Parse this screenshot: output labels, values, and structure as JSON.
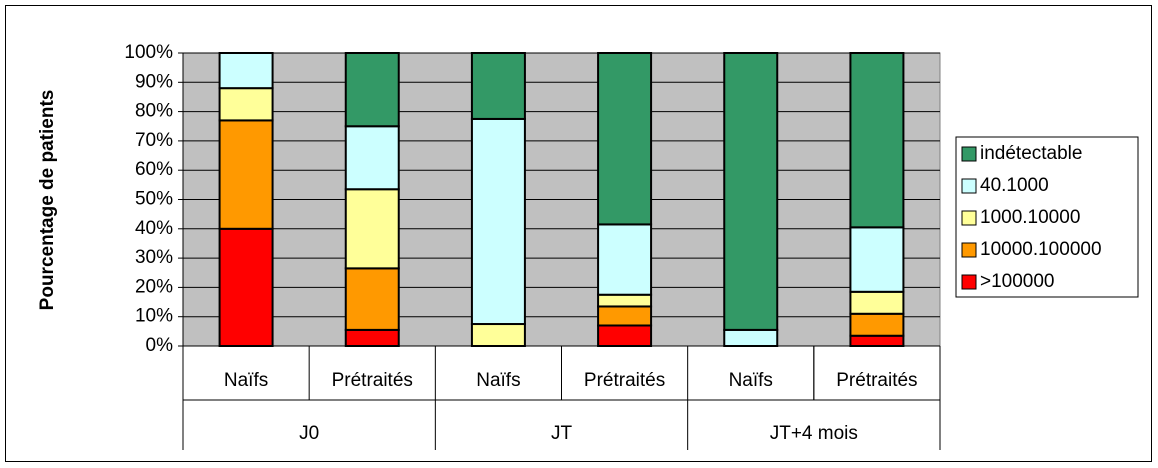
{
  "chart_data": {
    "type": "stacked_bar",
    "y_label": "Pourcentage de patients",
    "categories": [
      "Naïfs",
      "Prétraités",
      "Naïfs",
      "Prétraités",
      "Naïfs",
      "Prétraités"
    ],
    "groups": [
      "J0",
      "JT",
      "JT+4 mois"
    ],
    "series": [
      {
        "name": ">100000",
        "color": "#ff0000",
        "values": [
          40,
          5.5,
          0,
          7,
          0,
          3.5
        ]
      },
      {
        "name": "10000.100000",
        "color": "#ff9900",
        "values": [
          37,
          21,
          0,
          6.5,
          0,
          7.5
        ]
      },
      {
        "name": "1000.10000",
        "color": "#ffff99",
        "values": [
          11,
          27,
          7.5,
          4,
          0,
          7.5
        ]
      },
      {
        "name": "40.1000",
        "color": "#ccffff",
        "values": [
          12,
          21.5,
          70,
          24,
          5.5,
          22
        ]
      },
      {
        "name": "indétectable",
        "color": "#339966",
        "values": [
          0,
          25,
          22.5,
          58.5,
          94.5,
          59.5
        ]
      }
    ],
    "ylim": [
      0,
      100
    ],
    "yticks": [
      {
        "value": 0,
        "label": "0%"
      },
      {
        "value": 10,
        "label": "10%"
      },
      {
        "value": 20,
        "label": "20%"
      },
      {
        "value": 30,
        "label": "30%"
      },
      {
        "value": 40,
        "label": "40%"
      },
      {
        "value": 50,
        "label": "50%"
      },
      {
        "value": 60,
        "label": "60%"
      },
      {
        "value": 70,
        "label": "70%"
      },
      {
        "value": 80,
        "label": "80%"
      },
      {
        "value": 90,
        "label": "90%"
      },
      {
        "value": 100,
        "label": "100%"
      }
    ],
    "grid": true,
    "plot_background": "#c0c0c0",
    "legend_position": "right"
  }
}
